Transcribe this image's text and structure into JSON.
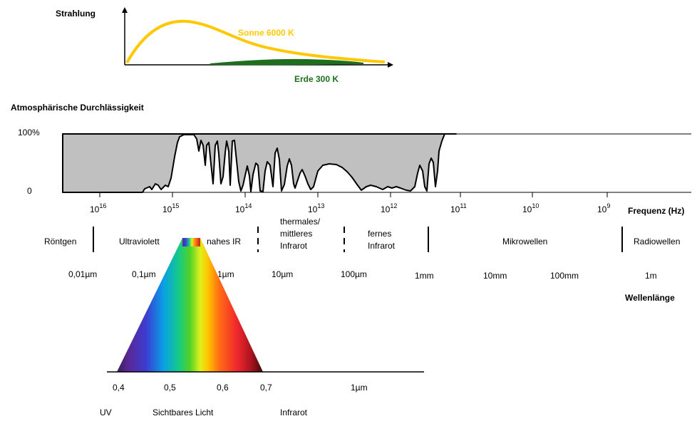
{
  "colors": {
    "sun": "#FFC800",
    "earth": "#1E6E1E",
    "transmission_fill": "#C0C0C0",
    "axis": "#000000"
  },
  "radiation_plot": {
    "y_label": "Strahlung",
    "sun_label": "Sonne 6000 K",
    "earth_label": "Erde 300 K"
  },
  "transmission": {
    "title": "Atmosphärische Durchlässigkeit",
    "tick_100": "100%",
    "tick_0": "0",
    "frequency_ticks": [
      {
        "base": "10",
        "exp": "16"
      },
      {
        "base": "10",
        "exp": "15"
      },
      {
        "base": "10",
        "exp": "14"
      },
      {
        "base": "10",
        "exp": "13"
      },
      {
        "base": "10",
        "exp": "12"
      },
      {
        "base": "10",
        "exp": "11"
      },
      {
        "base": "10",
        "exp": "10"
      },
      {
        "base": "10",
        "exp": "9"
      }
    ],
    "frequency_axis_label": "Frequenz (Hz)"
  },
  "bands": {
    "roentgen": "Röntgen",
    "ultraviolett": "Ultraviolett",
    "nahes_ir": "nahes IR",
    "thermal_1": "thermales/",
    "thermal_2": "mittleres",
    "thermal_3": "Infrarot",
    "fernes_1": "fernes",
    "fernes_2": "Infrarot",
    "mikrowellen": "Mikrowellen",
    "radiowellen": "Radiowellen"
  },
  "wavelength": {
    "ticks": [
      "0,01µm",
      "0,1µm",
      "1µm",
      "10µm",
      "100µm",
      "1mm",
      "10mm",
      "100mm",
      "1m"
    ],
    "axis_label": "Wellenlänge"
  },
  "visible_spectrum": {
    "ticks": [
      "0,4",
      "0,5",
      "0,6",
      "0,7",
      "1µm"
    ],
    "uv": "UV",
    "visible": "Sichtbares Licht",
    "infrared": "Infrarot"
  }
}
